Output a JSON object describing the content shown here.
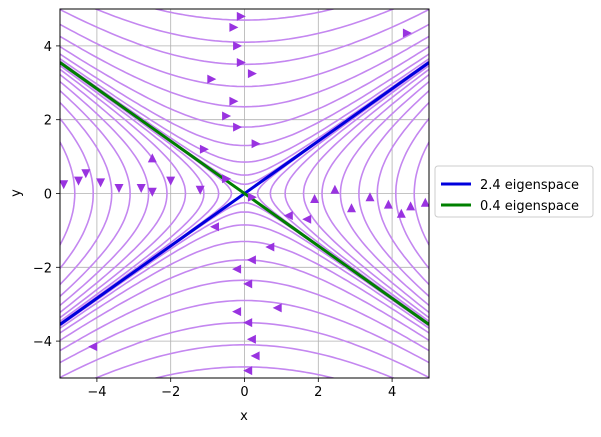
{
  "chart_data": {
    "type": "line",
    "subtype": "streamplot",
    "title": "",
    "xlabel": "x",
    "ylabel": "y",
    "xlim": [
      -5,
      5
    ],
    "ylim": [
      -5,
      5
    ],
    "xticks": [
      -4,
      -2,
      0,
      2,
      4
    ],
    "yticks": [
      -4,
      -2,
      0,
      2,
      4
    ],
    "xtick_labels": [
      "−4",
      "−2",
      "0",
      "2",
      "4"
    ],
    "ytick_labels": [
      "−4",
      "−2",
      "0",
      "2",
      "4"
    ],
    "grid": true,
    "legend_position": "right",
    "stream_color": "#c487f0",
    "arrow_color": "#9933e0",
    "series": [
      {
        "name": "2.4 eigenspace",
        "color": "#0000dd",
        "x": [
          -5,
          5
        ],
        "y": [
          -3.55,
          3.55
        ]
      },
      {
        "name": "0.4 eigenspace",
        "color": "#008000",
        "x": [
          -5,
          5
        ],
        "y": [
          3.55,
          -3.55
        ]
      }
    ],
    "hyperbola_levels": {
      "top": [
        0.25,
        0.5,
        0.85,
        1.3,
        1.8,
        2.35,
        2.9,
        3.5,
        4.1,
        4.7
      ],
      "bottom": [
        0.25,
        0.5,
        0.85,
        1.3,
        1.8,
        2.35,
        2.9,
        3.5,
        4.1,
        4.7
      ],
      "right": [
        0.35,
        0.7,
        1.1,
        1.6,
        2.1,
        2.6,
        3.1,
        3.6,
        4.1,
        4.6
      ],
      "left": [
        0.35,
        0.7,
        1.1,
        1.6,
        2.1,
        2.6,
        3.1,
        3.6,
        4.1,
        4.6
      ]
    },
    "arrows": [
      {
        "x": -0.1,
        "y": 4.8,
        "dir": "right"
      },
      {
        "x": -0.3,
        "y": 4.5,
        "dir": "right"
      },
      {
        "x": -0.2,
        "y": 4.0,
        "dir": "right"
      },
      {
        "x": -0.1,
        "y": 3.55,
        "dir": "right"
      },
      {
        "x": 0.2,
        "y": 3.25,
        "dir": "right"
      },
      {
        "x": -0.9,
        "y": 3.1,
        "dir": "right"
      },
      {
        "x": -0.3,
        "y": 2.5,
        "dir": "right"
      },
      {
        "x": -0.5,
        "y": 2.1,
        "dir": "right"
      },
      {
        "x": -0.2,
        "y": 1.8,
        "dir": "right"
      },
      {
        "x": 0.3,
        "y": 1.35,
        "dir": "right"
      },
      {
        "x": -1.1,
        "y": 1.2,
        "dir": "right"
      },
      {
        "x": -2.5,
        "y": 0.95,
        "dir": "up"
      },
      {
        "x": -0.5,
        "y": 0.4,
        "dir": "right"
      },
      {
        "x": 0.2,
        "y": -0.1,
        "dir": "right"
      },
      {
        "x": 4.4,
        "y": 4.35,
        "dir": "right"
      },
      {
        "x": -4.9,
        "y": 0.25,
        "dir": "down"
      },
      {
        "x": -4.5,
        "y": 0.35,
        "dir": "down"
      },
      {
        "x": -4.3,
        "y": 0.55,
        "dir": "down"
      },
      {
        "x": -3.9,
        "y": 0.3,
        "dir": "down"
      },
      {
        "x": -3.4,
        "y": 0.15,
        "dir": "down"
      },
      {
        "x": -2.8,
        "y": 0.15,
        "dir": "down"
      },
      {
        "x": -2.5,
        "y": 0.05,
        "dir": "down"
      },
      {
        "x": -2.0,
        "y": 0.35,
        "dir": "down"
      },
      {
        "x": -1.2,
        "y": 0.1,
        "dir": "down"
      },
      {
        "x": 1.9,
        "y": -0.15,
        "dir": "up"
      },
      {
        "x": 2.45,
        "y": 0.1,
        "dir": "up"
      },
      {
        "x": 2.9,
        "y": -0.4,
        "dir": "up"
      },
      {
        "x": 3.4,
        "y": -0.1,
        "dir": "up"
      },
      {
        "x": 3.9,
        "y": -0.3,
        "dir": "up"
      },
      {
        "x": 4.25,
        "y": -0.55,
        "dir": "up"
      },
      {
        "x": 4.5,
        "y": -0.35,
        "dir": "up"
      },
      {
        "x": 4.9,
        "y": -0.25,
        "dir": "up"
      },
      {
        "x": 1.2,
        "y": -0.6,
        "dir": "left"
      },
      {
        "x": 1.7,
        "y": -0.7,
        "dir": "left"
      },
      {
        "x": -0.8,
        "y": -0.9,
        "dir": "left"
      },
      {
        "x": 0.7,
        "y": -1.45,
        "dir": "left"
      },
      {
        "x": 0.2,
        "y": -1.8,
        "dir": "left"
      },
      {
        "x": -0.2,
        "y": -2.05,
        "dir": "left"
      },
      {
        "x": 0.1,
        "y": -2.45,
        "dir": "left"
      },
      {
        "x": 0.9,
        "y": -3.1,
        "dir": "left"
      },
      {
        "x": -0.2,
        "y": -3.2,
        "dir": "left"
      },
      {
        "x": 0.1,
        "y": -3.5,
        "dir": "left"
      },
      {
        "x": 0.2,
        "y": -3.95,
        "dir": "left"
      },
      {
        "x": 0.3,
        "y": -4.4,
        "dir": "left"
      },
      {
        "x": 0.1,
        "y": -4.8,
        "dir": "left"
      },
      {
        "x": -4.1,
        "y": -4.15,
        "dir": "left"
      }
    ]
  }
}
